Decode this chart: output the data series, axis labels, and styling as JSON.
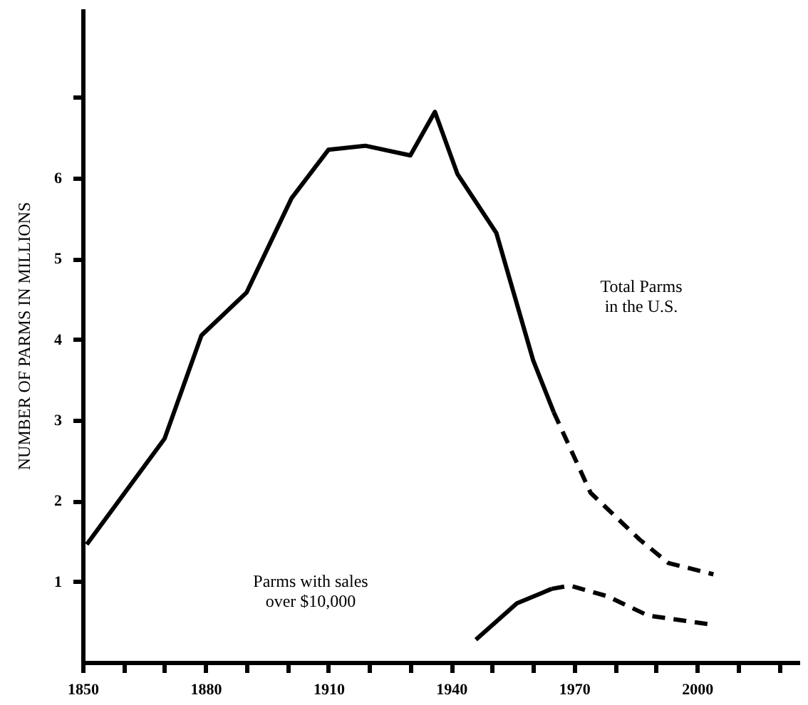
{
  "chart_data": {
    "type": "line",
    "ylabel": "NUMBER OF PARMS IN MILLIONS",
    "xlim": [
      1850,
      2025
    ],
    "ylim": [
      0,
      8.1
    ],
    "xticks": [
      1850,
      {
        "value": 1860,
        "label": null
      },
      {
        "value": 1870,
        "label": null
      },
      1880,
      {
        "value": 1890,
        "label": null
      },
      {
        "value": 1900,
        "label": null
      },
      1910,
      {
        "value": 1920,
        "label": null
      },
      {
        "value": 1930,
        "label": null
      },
      1940,
      {
        "value": 1950,
        "label": null
      },
      {
        "value": 1960,
        "label": null
      },
      1970,
      {
        "value": 1980,
        "label": null
      },
      {
        "value": 1990,
        "label": null
      },
      2000,
      {
        "value": 2010,
        "label": null
      },
      {
        "value": 2020,
        "label": null
      }
    ],
    "yticks": [
      1,
      2,
      3,
      4,
      5,
      6,
      {
        "value": 7,
        "label": null
      }
    ],
    "grid": false,
    "marker": "none",
    "series": [
      {
        "color": "#000000",
        "line_style": "solid",
        "x": [
          1851,
          1870,
          1879,
          1890,
          1901,
          1910,
          1919,
          1930,
          1936,
          1941.5,
          1951,
          1960,
          1965
        ],
        "values": [
          1.46,
          2.77,
          4.05,
          4.58,
          5.75,
          6.35,
          6.4,
          6.28,
          6.82,
          6.05,
          5.32,
          3.74,
          3.1
        ]
      },
      {
        "color": "#000000",
        "line_style": "dashed",
        "x": [
          1965,
          1974,
          1986,
          1993,
          2004
        ],
        "values": [
          3.1,
          2.1,
          1.52,
          1.23,
          1.09
        ]
      },
      {
        "color": "#000000",
        "line_style": "solid",
        "x": [
          1946,
          1956,
          1964.5
        ],
        "values": [
          0.28,
          0.73,
          0.91
        ]
      },
      {
        "color": "#000000",
        "line_style": "dashed",
        "x": [
          1964.5,
          1969,
          1978,
          1988,
          2003
        ],
        "values": [
          0.91,
          0.95,
          0.82,
          0.58,
          0.47
        ]
      }
    ],
    "annotations": [
      "Total Parms\nin the U.S.",
      "Parms with sales\nover $10,000"
    ]
  }
}
